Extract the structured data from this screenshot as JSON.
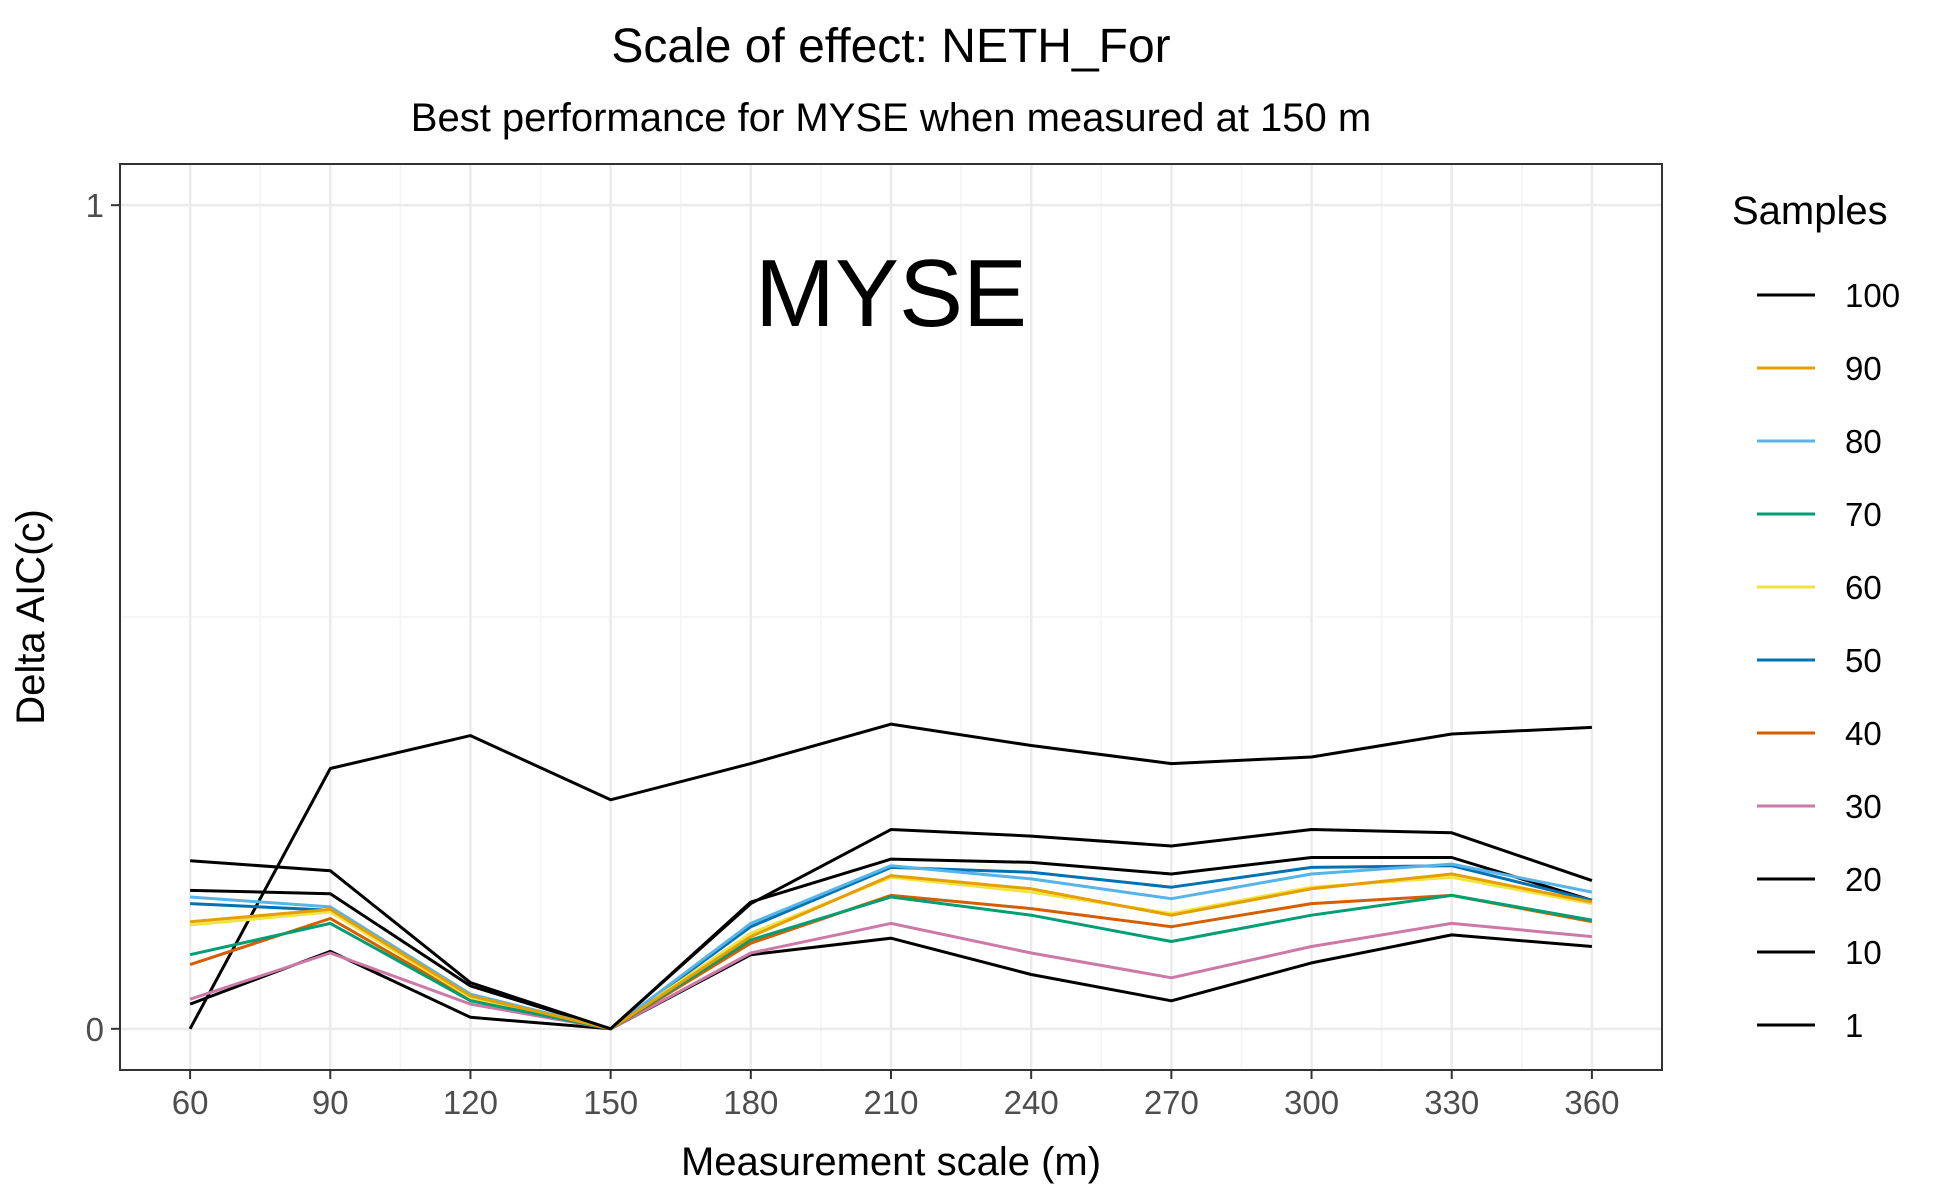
{
  "chart_data": {
    "type": "line",
    "title": "Scale of effect: NETH_For",
    "subtitle": "Best performance for MYSE when measured at 150 m",
    "xlabel": "Measurement scale (m)",
    "ylabel": "Delta AIC(c)",
    "x": [
      60,
      90,
      120,
      150,
      180,
      210,
      240,
      270,
      300,
      330,
      360
    ],
    "xlim": [
      45,
      375
    ],
    "ylim": [
      -0.05,
      1.05
    ],
    "y_ticks": [
      0,
      1
    ],
    "grid": true,
    "legend_position": "right",
    "legend_title": "Samples",
    "annotation": "MYSE",
    "series": [
      {
        "name": "100",
        "color": "#000000",
        "values": [
          0.204,
          0.192,
          0.056,
          0.0,
          0.152,
          0.242,
          0.234,
          0.222,
          0.242,
          0.238,
          0.18
        ]
      },
      {
        "name": "90",
        "color": "#E69F00",
        "values": [
          0.13,
          0.145,
          0.04,
          0.0,
          0.112,
          0.186,
          0.17,
          0.138,
          0.17,
          0.188,
          0.154
        ]
      },
      {
        "name": "80",
        "color": "#56B4E9",
        "values": [
          0.16,
          0.148,
          0.042,
          0.0,
          0.128,
          0.198,
          0.182,
          0.158,
          0.188,
          0.2,
          0.166
        ]
      },
      {
        "name": "70",
        "color": "#009E73",
        "values": [
          0.09,
          0.128,
          0.034,
          0.0,
          0.108,
          0.16,
          0.138,
          0.106,
          0.138,
          0.162,
          0.132
        ]
      },
      {
        "name": "60",
        "color": "#F0E442",
        "values": [
          0.126,
          0.142,
          0.038,
          0.0,
          0.116,
          0.184,
          0.166,
          0.14,
          0.172,
          0.184,
          0.152
        ]
      },
      {
        "name": "50",
        "color": "#0072B2",
        "values": [
          0.152,
          0.144,
          0.04,
          0.0,
          0.124,
          0.196,
          0.19,
          0.172,
          0.196,
          0.198,
          0.156
        ]
      },
      {
        "name": "40",
        "color": "#D55E00",
        "values": [
          0.078,
          0.134,
          0.036,
          0.0,
          0.104,
          0.162,
          0.146,
          0.124,
          0.152,
          0.162,
          0.13
        ]
      },
      {
        "name": "30",
        "color": "#CC79A7",
        "values": [
          0.036,
          0.092,
          0.03,
          0.0,
          0.092,
          0.128,
          0.092,
          0.062,
          0.1,
          0.128,
          0.112
        ]
      },
      {
        "name": "20",
        "color": "#000000",
        "values": [
          0.168,
          0.164,
          0.052,
          0.0,
          0.154,
          0.206,
          0.202,
          0.188,
          0.208,
          0.208,
          0.156
        ]
      },
      {
        "name": "10",
        "color": "#000000",
        "values": [
          0.03,
          0.094,
          0.014,
          0.0,
          0.09,
          0.11,
          0.066,
          0.034,
          0.08,
          0.114,
          0.1
        ]
      },
      {
        "name": "1",
        "color": "#000000",
        "values": [
          0.0,
          0.316,
          0.356,
          0.278,
          0.322,
          0.37,
          0.344,
          0.322,
          0.33,
          0.358,
          0.366
        ]
      }
    ]
  }
}
